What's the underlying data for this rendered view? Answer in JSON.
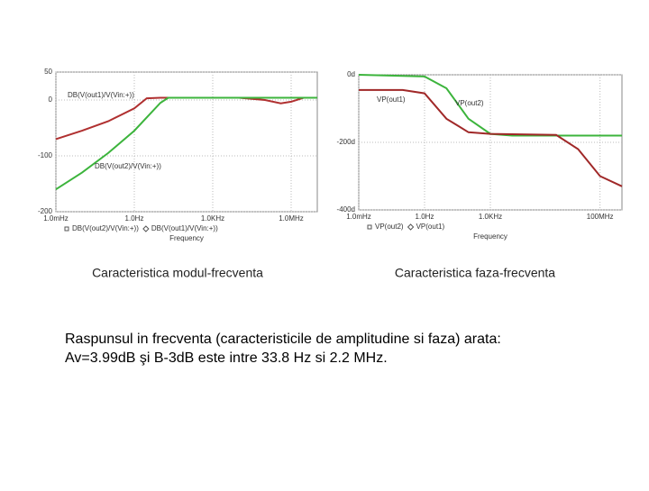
{
  "chart_data": [
    {
      "type": "line",
      "xscale": "log",
      "grid": true,
      "xlabel": "Frequency",
      "xlim": [
        0.001,
        10000000
      ],
      "xticks": [
        {
          "value": 0.001,
          "label": "1.0mHz"
        },
        {
          "value": 1,
          "label": "1.0Hz"
        },
        {
          "value": 1000,
          "label": "1.0KHz"
        },
        {
          "value": 1000000,
          "label": "1.0MHz"
        }
      ],
      "ylim": [
        -200,
        50
      ],
      "yticks": [
        50,
        0,
        -100,
        -200
      ],
      "legend_order": [
        1,
        0
      ],
      "series": [
        {
          "name": "DB(V(out1)/V(Vin:+))",
          "color": "#b03030",
          "axis": "y",
          "x": [
            0.001,
            0.01,
            0.1,
            1,
            3,
            10,
            100,
            1000,
            10000,
            100000,
            400000,
            1000000,
            3000000,
            10000000
          ],
          "values": [
            -70,
            -55,
            -38,
            -15,
            3,
            4,
            4,
            4,
            4,
            0,
            -6,
            -3,
            4,
            4
          ]
        },
        {
          "name": "DB(V(out2)/V(Vin:+))",
          "color": "#3cb43c",
          "axis": "y",
          "x": [
            0.001,
            0.01,
            0.1,
            1,
            10,
            20,
            100,
            10000000
          ],
          "values": [
            -160,
            -130,
            -95,
            -55,
            -5,
            4,
            4,
            4
          ]
        }
      ]
    },
    {
      "type": "line",
      "xscale": "log",
      "grid": true,
      "xlabel": "Frequency",
      "xlim": [
        0.001,
        1000000000
      ],
      "xticks": [
        {
          "value": 0.001,
          "label": "1.0mHz"
        },
        {
          "value": 1,
          "label": "1.0Hz"
        },
        {
          "value": 1000,
          "label": "1.0KHz"
        },
        {
          "value": 100000000,
          "label": "100MHz"
        }
      ],
      "ylim": [
        -400,
        0
      ],
      "yticks": [
        {
          "value": 0,
          "label": "0d"
        },
        {
          "value": -200,
          "label": "-200d"
        },
        {
          "value": -400,
          "label": "-400d"
        }
      ],
      "legend_order": [
        1,
        0
      ],
      "series": [
        {
          "name": "VP(out1)",
          "color": "#3cb43c",
          "axis": "y",
          "x": [
            0.001,
            1,
            10,
            100,
            1000,
            10000,
            1000000000
          ],
          "values": [
            0,
            -5,
            -40,
            -130,
            -175,
            -180,
            -180
          ]
        },
        {
          "name": "VP(out2)",
          "color": "#a02828",
          "axis": "y",
          "x": [
            0.001,
            0.1,
            1,
            10,
            100,
            1000,
            1000000,
            10000000,
            100000000,
            1000000000
          ],
          "values": [
            -45,
            -45,
            -55,
            -130,
            -170,
            -175,
            -178,
            -220,
            -300,
            -330
          ]
        }
      ]
    }
  ],
  "captions": [
    "Caracteristica modul-frecventa",
    "Caracteristica faza-frecventa"
  ],
  "text": [
    "Raspunsul in frecventa (caracteristicile de amplitudine si faza) arata:",
    "Av=3.99dB şi B-3dB este intre 33.8 Hz si 2.2 MHz."
  ]
}
